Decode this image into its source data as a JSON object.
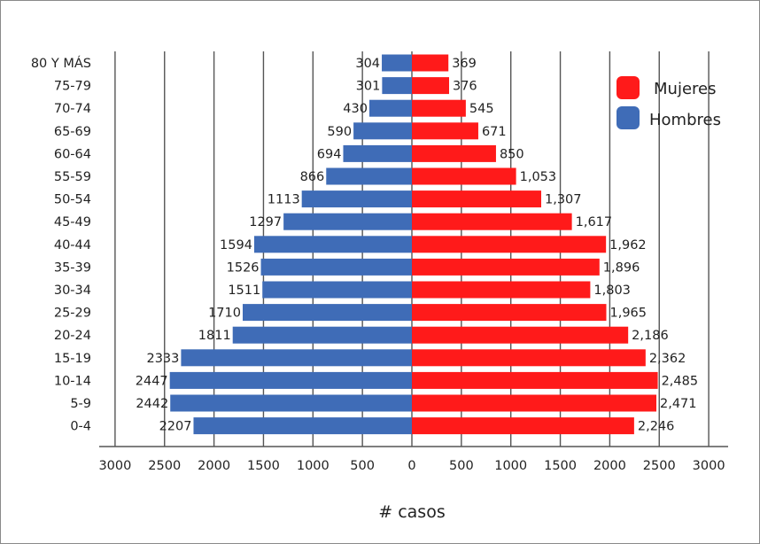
{
  "chart_data": {
    "type": "bar",
    "orientation": "horizontal",
    "layout": "population-pyramid",
    "categories": [
      "80 Y MÁS",
      "75-79",
      "70-74",
      "65-69",
      "60-64",
      "55-59",
      "50-54",
      "45-49",
      "40-44",
      "35-39",
      "30-34",
      "25-29",
      "20-24",
      "15-19",
      "10-14",
      "5-9",
      "0-4"
    ],
    "series": [
      {
        "name": "Mujeres",
        "color": "#ff1a1a",
        "side": "right",
        "values": [
          369,
          376,
          545,
          671,
          850,
          1053,
          1307,
          1617,
          1962,
          1896,
          1803,
          1965,
          2186,
          2362,
          2485,
          2471,
          2246
        ],
        "labels": [
          "369",
          "376",
          "545",
          "671",
          "850",
          "1,053",
          "1,307",
          "1,617",
          "1,962",
          "1,896",
          "1,803",
          "1,965",
          "2,186",
          "2,362",
          "2,485",
          "2,471",
          "2,246"
        ]
      },
      {
        "name": "Hombres",
        "color": "#3f6cb7",
        "side": "left",
        "values": [
          304,
          301,
          430,
          590,
          694,
          866,
          1113,
          1297,
          1594,
          1526,
          1511,
          1710,
          1811,
          2333,
          2447,
          2442,
          2207
        ],
        "labels": [
          "304",
          "301",
          "430",
          "590",
          "694",
          "866",
          "1113",
          "1297",
          "1594",
          "1526",
          "1511",
          "1710",
          "1811",
          "2333",
          "2447",
          "2442",
          "2207"
        ]
      }
    ],
    "xticks": [
      "3000",
      "2500",
      "2000",
      "1500",
      "1000",
      "500",
      "0",
      "500",
      "1000",
      "1500",
      "2000",
      "2500",
      "3000"
    ],
    "xlim": [
      -3000,
      3000
    ],
    "xlabel": "# casos",
    "grid": "vertical",
    "legend": "top-right"
  }
}
